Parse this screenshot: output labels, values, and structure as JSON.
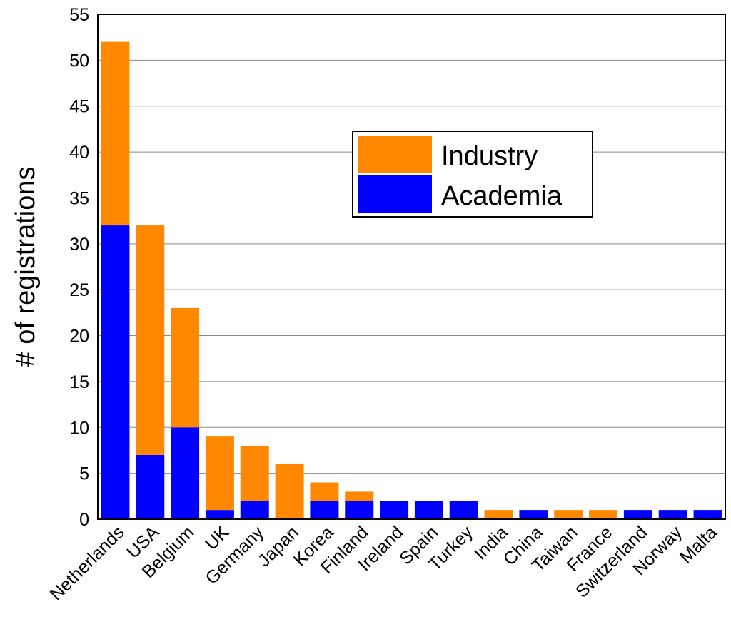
{
  "chart_data": {
    "type": "bar",
    "stacked": true,
    "categories": [
      "Netherlands",
      "USA",
      "Belgium",
      "UK",
      "Germany",
      "Japan",
      "Korea",
      "Finland",
      "Ireland",
      "Spain",
      "Turkey",
      "India",
      "China",
      "Taiwan",
      "France",
      "Switzerland",
      "Norway",
      "Malta"
    ],
    "series": [
      {
        "name": "Academia",
        "color": "#0000ff",
        "values": [
          32,
          7,
          10,
          1,
          2,
          0,
          2,
          2,
          2,
          2,
          2,
          0,
          1,
          0,
          0,
          1,
          1,
          1
        ]
      },
      {
        "name": "Industry",
        "color": "#ff8800",
        "values": [
          20,
          25,
          13,
          8,
          6,
          6,
          2,
          1,
          0,
          0,
          0,
          1,
          0,
          1,
          1,
          0,
          0,
          0
        ]
      }
    ],
    "ylabel": "# of registrations",
    "xlabel": "",
    "ylim": [
      0,
      55
    ],
    "yticks": [
      0,
      5,
      10,
      15,
      20,
      25,
      30,
      35,
      40,
      45,
      50,
      55
    ],
    "grid": true,
    "legend": {
      "position": "upper-right",
      "entries": [
        "Industry",
        "Academia"
      ]
    }
  }
}
